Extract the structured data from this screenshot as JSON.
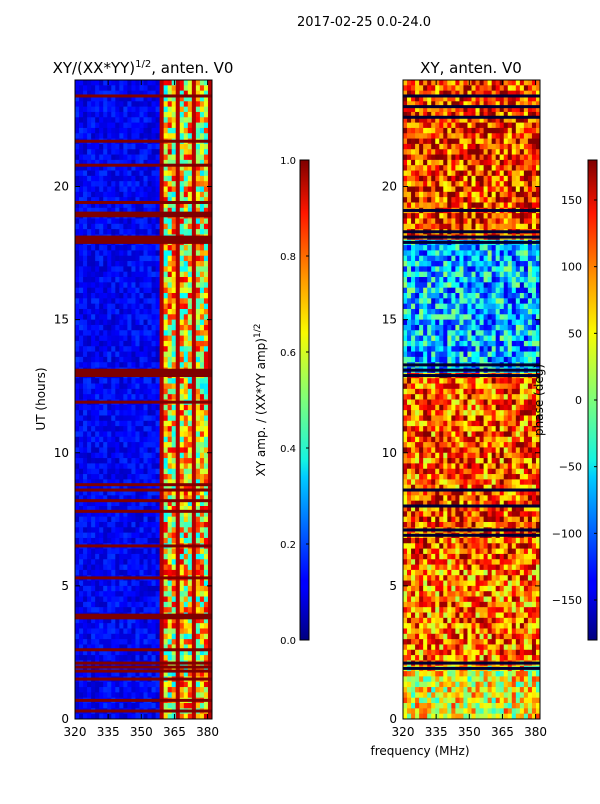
{
  "suptitle": "2017-02-25 0.0-24.0",
  "shared_xlabel": "frequency (MHz)",
  "chart_data": [
    {
      "type": "heatmap",
      "title_prefix": "XY/(XX*YY)",
      "title_sup": "1/2",
      "title_suffix": ", anten. V0",
      "xlabel": "",
      "ylabel": "UT (hours)",
      "xlim": [
        320,
        382
      ],
      "ylim": [
        0,
        24
      ],
      "xticks": [
        320,
        335,
        350,
        365,
        380
      ],
      "yticks": [
        0,
        5,
        10,
        15,
        20
      ],
      "colormap": "jet",
      "colorbar": {
        "label_main": "XY amp. / (XX*YY amp)",
        "label_sup": "1/2",
        "range": [
          0.0,
          1.0
        ],
        "ticks": [
          "0.0",
          "0.2",
          "0.4",
          "0.6",
          "0.8",
          "1.0"
        ]
      },
      "summary": {
        "background_level": 0.12,
        "bright_band_mhz": [
          359,
          382
        ],
        "bright_band_level": 0.7,
        "flagged_hours": [
          0.3,
          0.7,
          1.5,
          1.8,
          1.95,
          2.1,
          2.6,
          3.8,
          3.9,
          5.3,
          6.5,
          7.8,
          8.2,
          8.6,
          8.8,
          11.9,
          12.9,
          13.0,
          13.1,
          17.9,
          18.0,
          18.1,
          18.9,
          19.0,
          19.4,
          20.8,
          21.7,
          23.4
        ]
      }
    },
    {
      "type": "heatmap",
      "title_prefix": "XY, anten. V0",
      "title_sup": "",
      "title_suffix": "",
      "xlabel": "frequency (MHz)",
      "ylabel": "",
      "xlim": [
        320,
        382
      ],
      "ylim": [
        0,
        24
      ],
      "xticks": [
        320,
        335,
        350,
        365,
        380
      ],
      "yticks": [
        0,
        5,
        10,
        15,
        20
      ],
      "colormap": "jet",
      "colorbar": {
        "label_main": "phase (deg)",
        "label_sup": "",
        "range": [
          -180,
          180
        ],
        "ticks": [
          "−150",
          "−100",
          "−50",
          "0",
          "50",
          "100",
          "150"
        ]
      },
      "summary": {
        "phase_segments": [
          {
            "from": 0.0,
            "to": 2.0,
            "mean_deg": 40
          },
          {
            "from": 2.0,
            "to": 6.0,
            "mean_deg": 95
          },
          {
            "from": 6.0,
            "to": 8.5,
            "mean_deg": 110
          },
          {
            "from": 8.5,
            "to": 13.0,
            "mean_deg": 105
          },
          {
            "from": 13.0,
            "to": 18.0,
            "mean_deg": -70
          },
          {
            "from": 18.0,
            "to": 24.0,
            "mean_deg": 120
          }
        ],
        "flagged_hours": [
          1.9,
          2.1,
          6.9,
          7.1,
          8.0,
          8.6,
          12.9,
          13.1,
          13.3,
          17.9,
          18.1,
          18.3,
          19.1,
          22.6,
          23.0,
          23.4
        ]
      }
    }
  ]
}
